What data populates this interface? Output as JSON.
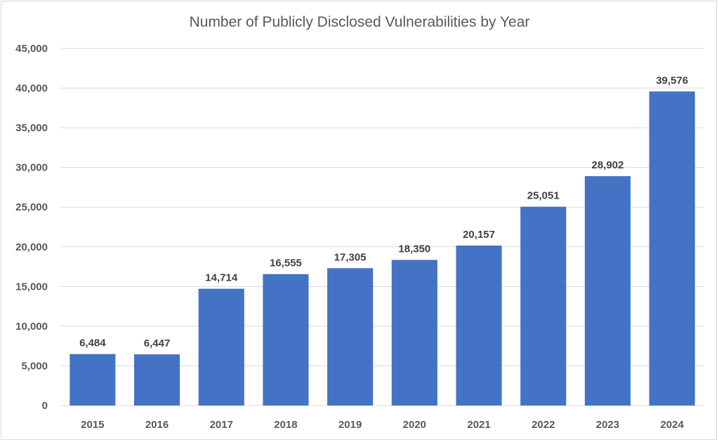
{
  "chart_data": {
    "type": "bar",
    "title": "Number of Publicly Disclosed Vulnerabilities by Year",
    "xlabel": "",
    "ylabel": "",
    "categories": [
      "2015",
      "2016",
      "2017",
      "2018",
      "2019",
      "2020",
      "2021",
      "2022",
      "2023",
      "2024"
    ],
    "values": [
      6484,
      6447,
      14714,
      16555,
      17305,
      18350,
      20157,
      25051,
      28902,
      39576
    ],
    "data_labels": [
      "6,484",
      "6,447",
      "14,714",
      "16,555",
      "17,305",
      "18,350",
      "20,157",
      "25,051",
      "28,902",
      "39,576"
    ],
    "yticks": [
      0,
      5000,
      10000,
      15000,
      20000,
      25000,
      30000,
      35000,
      40000,
      45000
    ],
    "ytick_labels": [
      "0",
      "5,000",
      "10,000",
      "15,000",
      "20,000",
      "25,000",
      "30,000",
      "35,000",
      "40,000",
      "45,000"
    ],
    "ylim": [
      0,
      45000
    ],
    "grid": true,
    "legend": false,
    "bar_color": "#4472C4"
  }
}
